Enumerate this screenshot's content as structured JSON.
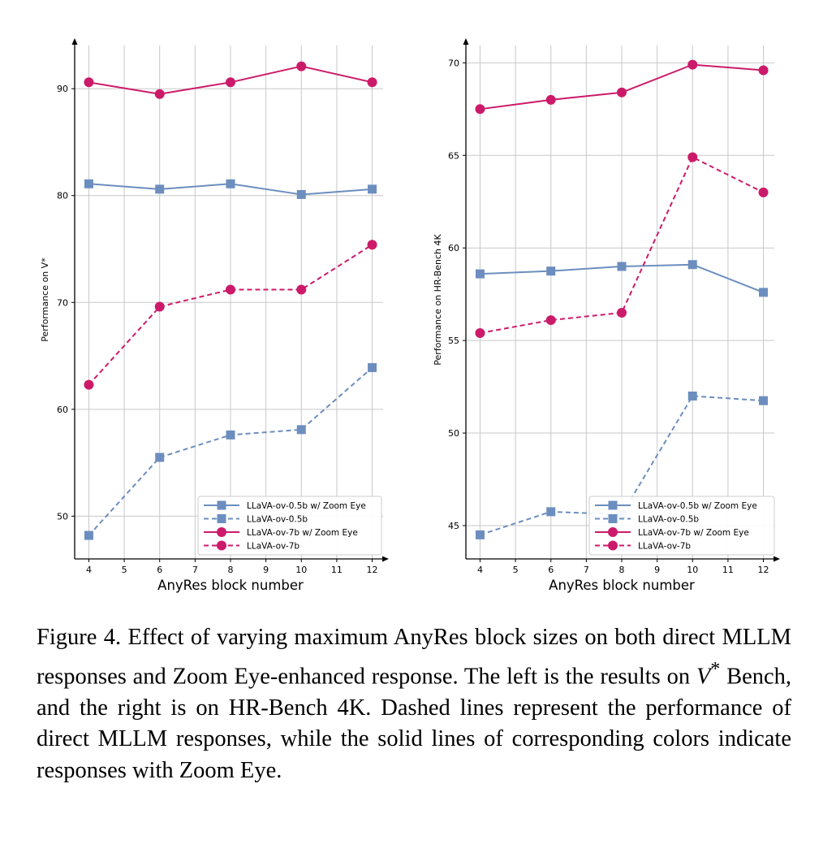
{
  "chart_data": [
    {
      "type": "line",
      "xlabel": "AnyRes block number",
      "ylabel": "Performance on V*",
      "xlim": [
        3.6,
        12.4
      ],
      "ylim": [
        46,
        94.5
      ],
      "xticks": [
        4,
        5,
        6,
        7,
        8,
        9,
        10,
        11,
        12
      ],
      "yticks": [
        50,
        60,
        70,
        80,
        90
      ],
      "grid": true,
      "legend_position": "lower-right",
      "x": [
        4,
        6,
        8,
        10,
        12
      ],
      "series": [
        {
          "name": "LLaVA-ov-0.5b w/ Zoom Eye",
          "color": "#6c8ebf",
          "style": "solid",
          "marker": "square",
          "values": [
            81.1,
            80.6,
            81.1,
            80.1,
            80.6
          ]
        },
        {
          "name": "LLaVA-ov-0.5b",
          "color": "#6c8ebf",
          "style": "dashed",
          "marker": "square",
          "values": [
            48.2,
            55.5,
            57.6,
            58.1,
            63.9
          ]
        },
        {
          "name": "LLaVA-ov-7b w/ Zoom Eye",
          "color": "#cc1a6a",
          "style": "solid",
          "marker": "circle",
          "values": [
            90.6,
            89.5,
            90.6,
            92.1,
            90.6
          ]
        },
        {
          "name": "LLaVA-ov-7b",
          "color": "#cc1a6a",
          "style": "dashed",
          "marker": "circle",
          "values": [
            62.3,
            69.6,
            71.2,
            71.2,
            75.4
          ]
        }
      ]
    },
    {
      "type": "line",
      "xlabel": "AnyRes block number",
      "ylabel": "Performance on HR-Bench 4K",
      "xlim": [
        3.6,
        12.4
      ],
      "ylim": [
        43.2,
        71.2
      ],
      "xticks": [
        4,
        5,
        6,
        7,
        8,
        9,
        10,
        11,
        12
      ],
      "yticks": [
        45,
        50,
        55,
        60,
        65,
        70
      ],
      "grid": true,
      "legend_position": "lower-right",
      "x": [
        4,
        6,
        8,
        10,
        12
      ],
      "series": [
        {
          "name": "LLaVA-ov-0.5b w/ Zoom Eye",
          "color": "#6c8ebf",
          "style": "solid",
          "marker": "square",
          "values": [
            58.6,
            58.75,
            59.0,
            59.1,
            57.6
          ]
        },
        {
          "name": "LLaVA-ov-0.5b",
          "color": "#6c8ebf",
          "style": "dashed",
          "marker": "square",
          "values": [
            44.5,
            45.75,
            45.6,
            52.0,
            51.75
          ]
        },
        {
          "name": "LLaVA-ov-7b w/ Zoom Eye",
          "color": "#cc1a6a",
          "style": "solid",
          "marker": "circle",
          "values": [
            67.5,
            68.0,
            68.4,
            69.9,
            69.6
          ]
        },
        {
          "name": "LLaVA-ov-7b",
          "color": "#cc1a6a",
          "style": "dashed",
          "marker": "circle",
          "values": [
            55.4,
            56.1,
            56.5,
            64.9,
            63.0
          ]
        }
      ]
    }
  ],
  "caption": {
    "label": "Figure 4.",
    "before_var": " Effect of varying maximum AnyRes block sizes on both direct MLLM responses and Zoom Eye-enhanced response. The left is the results on ",
    "var_base": "V",
    "var_sup": "*",
    "after_var": " Bench, and the right is on HR-Bench 4K. Dashed lines represent the performance of direct MLLM responses, while the solid lines of corresponding colors indicate responses with Zoom Eye."
  }
}
